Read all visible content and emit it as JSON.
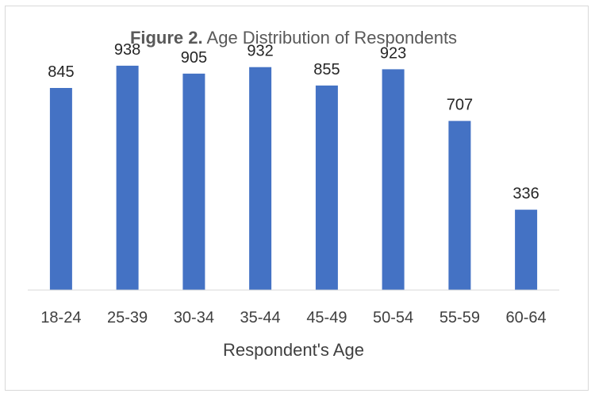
{
  "chart_data": {
    "type": "bar",
    "title_prefix": "Figure 2.",
    "title": "Age Distribution of Respondents",
    "xlabel": "Respondent's Age",
    "ylabel": "",
    "categories": [
      "18-24",
      "25-39",
      "30-34",
      "35-44",
      "45-49",
      "50-54",
      "55-59",
      "60-64"
    ],
    "values": [
      845,
      938,
      905,
      932,
      855,
      923,
      707,
      336
    ],
    "ylim": [
      0,
      1100
    ],
    "grid": false,
    "legend": "none",
    "bar_color": "#4472c4"
  }
}
